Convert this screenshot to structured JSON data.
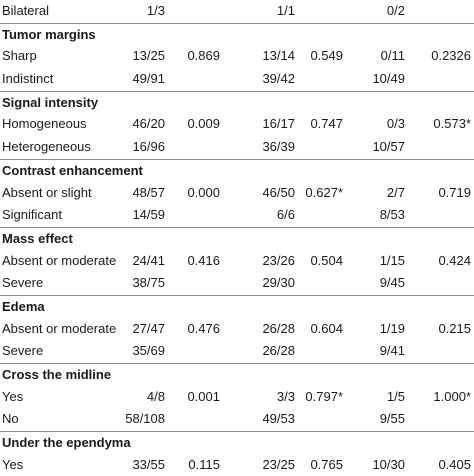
{
  "rows": [
    {
      "type": "data",
      "label": "Bilateral",
      "v": [
        "1/3",
        "",
        "1/1",
        "",
        "0/2",
        ""
      ]
    },
    {
      "type": "section",
      "label": "Tumor margins"
    },
    {
      "type": "data",
      "label": "Sharp",
      "v": [
        "13/25",
        "0.869",
        "13/14",
        "0.549",
        "0/11",
        "0.2326"
      ]
    },
    {
      "type": "data",
      "label": "Indistinct",
      "v": [
        "49/91",
        "",
        "39/42",
        "",
        "10/49",
        ""
      ]
    },
    {
      "type": "section",
      "label": "Signal intensity"
    },
    {
      "type": "data",
      "label": "Homogeneous",
      "v": [
        "46/20",
        "0.009",
        "16/17",
        "0.747",
        "0/3",
        "0.573*"
      ]
    },
    {
      "type": "data",
      "label": "Heterogeneous",
      "v": [
        "16/96",
        "",
        "36/39",
        "",
        "10/57",
        ""
      ]
    },
    {
      "type": "section",
      "label": "Contrast enhancement"
    },
    {
      "type": "data",
      "label": "Absent or slight",
      "v": [
        "48/57",
        "0.000",
        "46/50",
        "0.627*",
        "2/7",
        "0.719"
      ]
    },
    {
      "type": "data",
      "label": "Significant",
      "v": [
        "14/59",
        "",
        "6/6",
        "",
        "8/53",
        ""
      ]
    },
    {
      "type": "section",
      "label": "Mass effect"
    },
    {
      "type": "data",
      "label": "Absent or moderate",
      "v": [
        "24/41",
        "0.416",
        "23/26",
        "0.504",
        "1/15",
        "0.424"
      ]
    },
    {
      "type": "data",
      "label": "Severe",
      "v": [
        "38/75",
        "",
        "29/30",
        "",
        "9/45",
        ""
      ]
    },
    {
      "type": "section",
      "label": "Edema"
    },
    {
      "type": "data",
      "label": "Absent or moderate",
      "v": [
        "27/47",
        "0.476",
        "26/28",
        "0.604",
        "1/19",
        "0.215"
      ]
    },
    {
      "type": "data",
      "label": "Severe",
      "v": [
        "35/69",
        "",
        "26/28",
        "",
        "9/41",
        ""
      ]
    },
    {
      "type": "section",
      "label": "Cross the midline"
    },
    {
      "type": "data",
      "label": "Yes",
      "v": [
        "4/8",
        "0.001",
        "3/3",
        "0.797*",
        "1/5",
        "1.000*"
      ]
    },
    {
      "type": "data",
      "label": "No",
      "v": [
        "58/108",
        "",
        "49/53",
        "",
        "9/55",
        ""
      ]
    },
    {
      "type": "section",
      "label": "Under the ependyma"
    },
    {
      "type": "data",
      "label": "Yes",
      "v": [
        "33/55",
        "0.115",
        "23/25",
        "0.765",
        "10/30",
        "0.405"
      ]
    }
  ]
}
